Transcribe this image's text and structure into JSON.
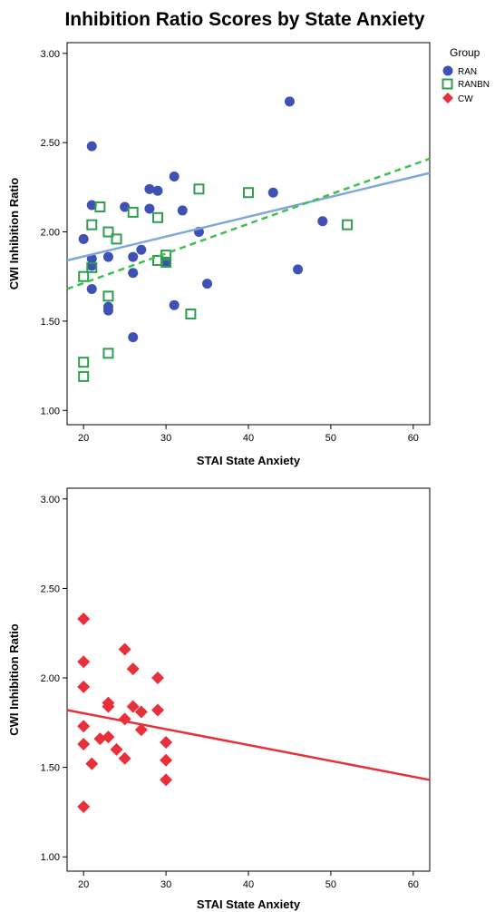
{
  "title": "Inhibition Ratio Scores by State Anxiety",
  "legend": {
    "title": "Group",
    "placement": "top-right",
    "items": [
      {
        "label": "RAN",
        "marker": "circle",
        "color": "#3f51b5"
      },
      {
        "label": "RANBN",
        "marker": "square-open",
        "color": "#2e9e4f"
      },
      {
        "label": "CW",
        "marker": "diamond",
        "color": "#e8303a"
      }
    ]
  },
  "chart_data": [
    {
      "type": "scatter",
      "xlabel": "STAI State Anxiety",
      "ylabel": "CWI Inhibition Ratio",
      "xlim": [
        18,
        62
      ],
      "ylim": [
        0.92,
        3.06
      ],
      "xticks": [
        "20",
        "30",
        "40",
        "50",
        "60"
      ],
      "yticks": [
        "1.00",
        "1.50",
        "2.00",
        "2.50",
        "3.00"
      ],
      "grid": false,
      "series": [
        {
          "name": "RAN",
          "marker": "circle",
          "color": "#3f51b5",
          "points": [
            [
              20,
              1.96
            ],
            [
              21,
              2.48
            ],
            [
              21,
              2.15
            ],
            [
              21,
              1.85
            ],
            [
              21,
              1.81
            ],
            [
              21,
              1.68
            ],
            [
              23,
              1.86
            ],
            [
              23,
              1.58
            ],
            [
              23,
              1.56
            ],
            [
              25,
              2.14
            ],
            [
              26,
              1.86
            ],
            [
              26,
              1.77
            ],
            [
              26,
              1.41
            ],
            [
              27,
              1.9
            ],
            [
              28,
              2.24
            ],
            [
              28,
              2.13
            ],
            [
              29,
              2.23
            ],
            [
              30,
              1.83
            ],
            [
              31,
              2.31
            ],
            [
              31,
              1.59
            ],
            [
              32,
              2.12
            ],
            [
              34,
              2.0
            ],
            [
              35,
              1.71
            ],
            [
              43,
              2.22
            ],
            [
              45,
              2.73
            ],
            [
              46,
              1.79
            ],
            [
              49,
              2.06
            ]
          ],
          "fit": {
            "x": [
              18,
              62
            ],
            "y": [
              1.84,
              2.33
            ],
            "color": "#7fa7d8",
            "dash": false
          }
        },
        {
          "name": "RANBN",
          "marker": "square-open",
          "color": "#2e9e4f",
          "points": [
            [
              20,
              1.75
            ],
            [
              20,
              1.27
            ],
            [
              20,
              1.19
            ],
            [
              21,
              2.04
            ],
            [
              21,
              1.8
            ],
            [
              22,
              2.14
            ],
            [
              23,
              2.0
            ],
            [
              23,
              1.64
            ],
            [
              23,
              1.32
            ],
            [
              24,
              1.96
            ],
            [
              26,
              2.11
            ],
            [
              29,
              2.08
            ],
            [
              29,
              1.84
            ],
            [
              30,
              1.87
            ],
            [
              30,
              1.83
            ],
            [
              33,
              1.54
            ],
            [
              34,
              2.24
            ],
            [
              40,
              2.22
            ],
            [
              52,
              2.04
            ]
          ],
          "fit": {
            "x": [
              18,
              62
            ],
            "y": [
              1.68,
              2.41
            ],
            "color": "#3fbf4f",
            "dash": true
          }
        }
      ]
    },
    {
      "type": "scatter",
      "xlabel": "STAI State Anxiety",
      "ylabel": "CWI Inhibition Ratio",
      "xlim": [
        18,
        62
      ],
      "ylim": [
        0.92,
        3.06
      ],
      "xticks": [
        "20",
        "30",
        "40",
        "50",
        "60"
      ],
      "yticks": [
        "1.00",
        "1.50",
        "2.00",
        "2.50",
        "3.00"
      ],
      "grid": false,
      "series": [
        {
          "name": "CW",
          "marker": "diamond",
          "color": "#e8303a",
          "points": [
            [
              20,
              2.33
            ],
            [
              20,
              2.09
            ],
            [
              20,
              1.95
            ],
            [
              20,
              1.73
            ],
            [
              20,
              1.63
            ],
            [
              20,
              1.28
            ],
            [
              21,
              1.52
            ],
            [
              22,
              1.66
            ],
            [
              23,
              1.86
            ],
            [
              23,
              1.84
            ],
            [
              23,
              1.67
            ],
            [
              24,
              1.6
            ],
            [
              25,
              2.16
            ],
            [
              25,
              1.77
            ],
            [
              25,
              1.55
            ],
            [
              26,
              2.05
            ],
            [
              26,
              1.84
            ],
            [
              27,
              1.81
            ],
            [
              27,
              1.71
            ],
            [
              29,
              2.0
            ],
            [
              29,
              1.82
            ],
            [
              30,
              1.64
            ],
            [
              30,
              1.54
            ],
            [
              30,
              1.43
            ]
          ],
          "fit": {
            "x": [
              18,
              62
            ],
            "y": [
              1.82,
              1.43
            ],
            "color": "#e8303a",
            "dash": false
          }
        }
      ]
    }
  ]
}
